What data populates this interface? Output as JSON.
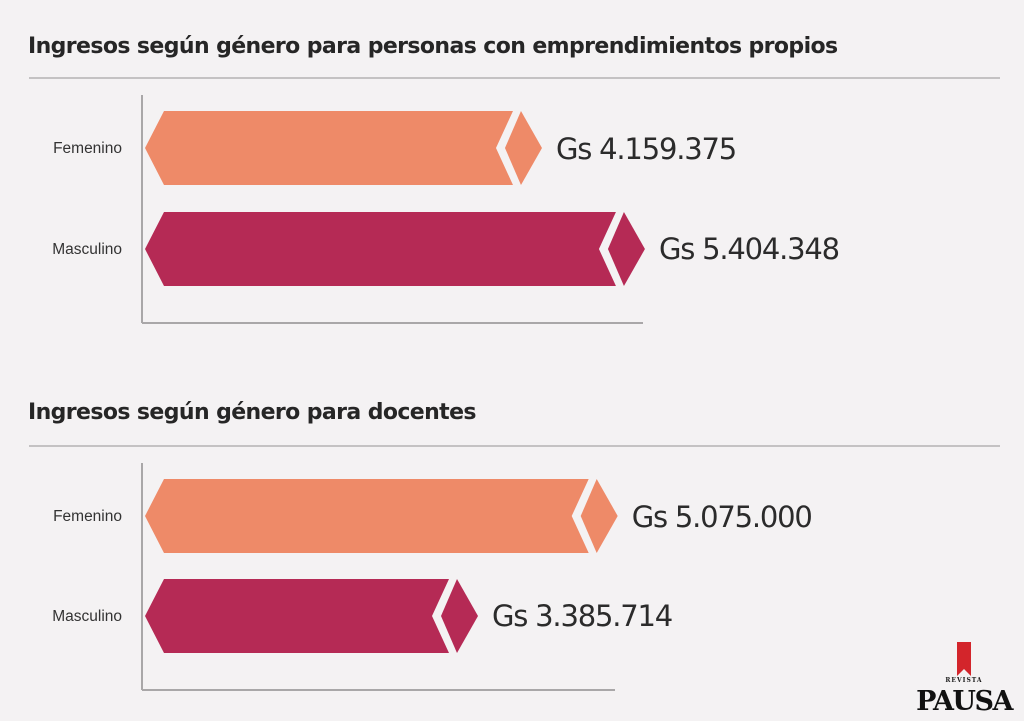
{
  "colors": {
    "background": "#f4f2f3",
    "femenino": "#ee8a68",
    "masculino": "#b52a55",
    "axis": "#a9a7a8",
    "rule": "#c4c2c3",
    "logo_red": "#d3252b"
  },
  "chart_data": [
    {
      "type": "bar",
      "orientation": "horizontal",
      "title": "Ingresos según género para personas con emprendimientos propios",
      "categories": [
        "Femenino",
        "Masculino"
      ],
      "values": [
        4159375,
        5404348
      ],
      "value_labels": [
        "Gs 4.159.375",
        "Gs 5.404.348"
      ],
      "currency": "Gs",
      "xlabel": "",
      "ylabel": "",
      "grid": false,
      "legend": "none"
    },
    {
      "type": "bar",
      "orientation": "horizontal",
      "title": "Ingresos según género para docentes",
      "categories": [
        "Femenino",
        "Masculino"
      ],
      "values": [
        5075000,
        3385714
      ],
      "value_labels": [
        "Gs 5.075.000",
        "Gs 3.385.714"
      ],
      "currency": "Gs",
      "xlabel": "",
      "ylabel": "",
      "grid": false,
      "legend": "none"
    }
  ],
  "logo": {
    "subtitle": "REVISTA",
    "name": "PAUSA"
  }
}
